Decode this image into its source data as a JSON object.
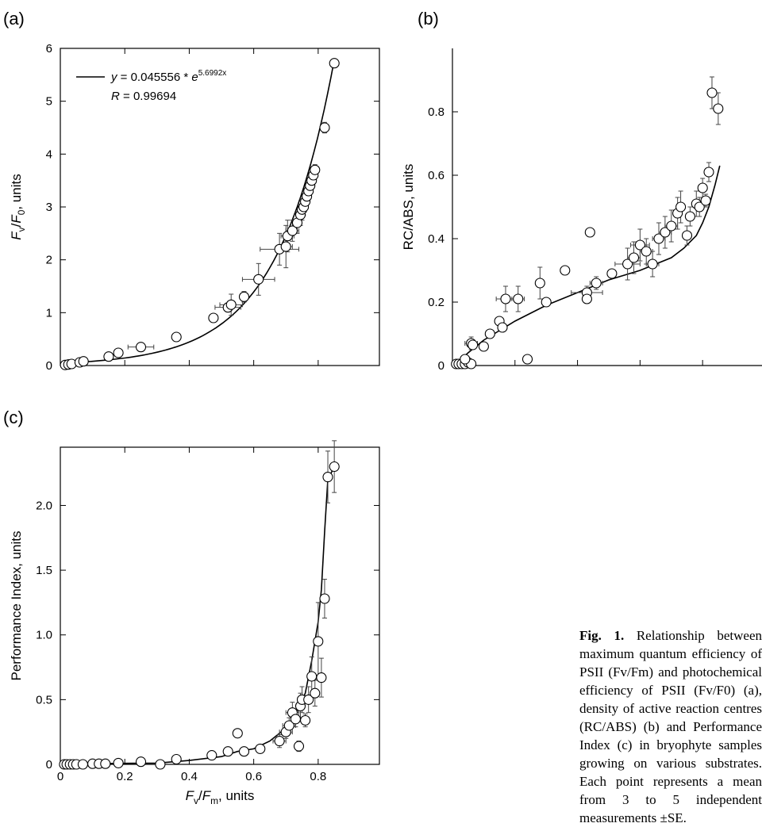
{
  "chart_data": [
    {
      "type": "scatter",
      "panel_label": "(a)",
      "ylabel": "F_v/F_0, units",
      "xlim": [
        0,
        0.99
      ],
      "ylim": [
        0,
        6
      ],
      "yticks": [
        "0",
        "1",
        "2",
        "3",
        "4",
        "5",
        "6"
      ],
      "equation_prefix": "y = 0.045556 * ",
      "equation_base": "e",
      "equation_exponent": "5.6992x",
      "r_label": "R",
      "r_value": " = 0.99694",
      "fit": {
        "kind": "exp",
        "a": 0.045556,
        "b": 5.6992,
        "x_range": [
          0.012,
          0.85
        ]
      },
      "points": [
        [
          0.015,
          0.01,
          0,
          0
        ],
        [
          0.025,
          0.02,
          0,
          0
        ],
        [
          0.035,
          0.03,
          0,
          0
        ],
        [
          0.06,
          0.06,
          0,
          0
        ],
        [
          0.072,
          0.08,
          0,
          0
        ],
        [
          0.15,
          0.17,
          0,
          0
        ],
        [
          0.18,
          0.24,
          0,
          0
        ],
        [
          0.25,
          0.35,
          0.04,
          0.06
        ],
        [
          0.36,
          0.54,
          0,
          0.04
        ],
        [
          0.475,
          0.9,
          0,
          0
        ],
        [
          0.52,
          1.1,
          0.04,
          0.05
        ],
        [
          0.53,
          1.15,
          0.035,
          0.2
        ],
        [
          0.57,
          1.3,
          0.01,
          0.1
        ],
        [
          0.615,
          1.63,
          0.05,
          0.3
        ],
        [
          0.68,
          2.2,
          0.06,
          0.3
        ],
        [
          0.7,
          2.25,
          0.02,
          0.4
        ],
        [
          0.705,
          2.45,
          0.02,
          0.3
        ],
        [
          0.72,
          2.55,
          0.02,
          0.2
        ],
        [
          0.735,
          2.7,
          0.01,
          0.2
        ],
        [
          0.745,
          2.85,
          0.01,
          0.2
        ],
        [
          0.75,
          2.95,
          0.01,
          0.2
        ],
        [
          0.755,
          3.0,
          0.01,
          0.15
        ],
        [
          0.76,
          3.1,
          0.01,
          0.15
        ],
        [
          0.765,
          3.2,
          0.01,
          0.1
        ],
        [
          0.77,
          3.3,
          0.01,
          0.1
        ],
        [
          0.775,
          3.4,
          0.01,
          0.1
        ],
        [
          0.78,
          3.5,
          0.01,
          0.1
        ],
        [
          0.785,
          3.6,
          0.01,
          0.1
        ],
        [
          0.79,
          3.7,
          0.01,
          0.1
        ],
        [
          0.82,
          4.5,
          0.01,
          0.1
        ],
        [
          0.85,
          5.72,
          0,
          0
        ]
      ]
    },
    {
      "type": "scatter",
      "panel_label": "(b)",
      "ylabel": "RC/ABS, units",
      "xlim": [
        0,
        0.99
      ],
      "ylim": [
        0,
        1.0
      ],
      "yticks": [
        "0",
        "0.2",
        "0.4",
        "0.6",
        "0.8"
      ],
      "fit": {
        "kind": "curve",
        "points": [
          [
            0.012,
            0.005
          ],
          [
            0.05,
            0.04
          ],
          [
            0.1,
            0.08
          ],
          [
            0.15,
            0.11
          ],
          [
            0.2,
            0.14
          ],
          [
            0.3,
            0.19
          ],
          [
            0.4,
            0.23
          ],
          [
            0.5,
            0.27
          ],
          [
            0.6,
            0.3
          ],
          [
            0.7,
            0.34
          ],
          [
            0.74,
            0.37
          ],
          [
            0.78,
            0.41
          ],
          [
            0.8,
            0.45
          ],
          [
            0.82,
            0.5
          ],
          [
            0.84,
            0.57
          ],
          [
            0.855,
            0.63
          ]
        ]
      },
      "points": [
        [
          0.012,
          0.005,
          0,
          0
        ],
        [
          0.02,
          0.005,
          0,
          0
        ],
        [
          0.03,
          0.005,
          0,
          0
        ],
        [
          0.04,
          0.005,
          0,
          0
        ],
        [
          0.05,
          0.01,
          0,
          0
        ],
        [
          0.06,
          0.005,
          0,
          0
        ],
        [
          0.04,
          0.02,
          0,
          0
        ],
        [
          0.06,
          0.07,
          0.02,
          0.02
        ],
        [
          0.065,
          0.065,
          0,
          0
        ],
        [
          0.1,
          0.06,
          0,
          0
        ],
        [
          0.12,
          0.1,
          0,
          0
        ],
        [
          0.15,
          0.14,
          0.01,
          0.01
        ],
        [
          0.16,
          0.12,
          0,
          0
        ],
        [
          0.17,
          0.21,
          0.03,
          0.04
        ],
        [
          0.21,
          0.21,
          0.02,
          0.04
        ],
        [
          0.24,
          0.02,
          0,
          0
        ],
        [
          0.28,
          0.26,
          0.01,
          0.05
        ],
        [
          0.3,
          0.2,
          0,
          0
        ],
        [
          0.36,
          0.3,
          0,
          0
        ],
        [
          0.43,
          0.23,
          0.05,
          0.02
        ],
        [
          0.43,
          0.21,
          0.01,
          0.01
        ],
        [
          0.44,
          0.42,
          0,
          0
        ],
        [
          0.46,
          0.26,
          0.02,
          0.02
        ],
        [
          0.51,
          0.29,
          0,
          0
        ],
        [
          0.56,
          0.32,
          0.04,
          0.05
        ],
        [
          0.58,
          0.34,
          0.02,
          0.05
        ],
        [
          0.6,
          0.38,
          0.03,
          0.05
        ],
        [
          0.62,
          0.36,
          0.02,
          0.04
        ],
        [
          0.64,
          0.32,
          0.02,
          0.04
        ],
        [
          0.66,
          0.4,
          0.02,
          0.05
        ],
        [
          0.68,
          0.42,
          0.02,
          0.05
        ],
        [
          0.7,
          0.44,
          0.02,
          0.05
        ],
        [
          0.72,
          0.48,
          0.01,
          0.05
        ],
        [
          0.73,
          0.5,
          0.01,
          0.05
        ],
        [
          0.75,
          0.41,
          0.01,
          0.03
        ],
        [
          0.76,
          0.47,
          0.01,
          0.03
        ],
        [
          0.78,
          0.51,
          0.01,
          0.04
        ],
        [
          0.79,
          0.5,
          0.01,
          0.03
        ],
        [
          0.8,
          0.56,
          0.01,
          0.03
        ],
        [
          0.81,
          0.52,
          0.01,
          0.02
        ],
        [
          0.82,
          0.61,
          0.01,
          0.03
        ],
        [
          0.83,
          0.86,
          0.01,
          0.05
        ],
        [
          0.85,
          0.81,
          0.01,
          0.05
        ]
      ]
    },
    {
      "type": "scatter",
      "panel_label": "(c)",
      "ylabel": "Performance Index, units",
      "xlabel": "F_v/F_m, units",
      "xlim": [
        0,
        0.99
      ],
      "ylim": [
        0,
        2.45
      ],
      "yticks": [
        "0",
        "0.5",
        "1.0",
        "1.5",
        "2.0"
      ],
      "xticks": [
        "0",
        "0.2",
        "0.4",
        "0.6",
        "0.8"
      ],
      "fit": {
        "kind": "curve",
        "points": [
          [
            0.012,
            0.0
          ],
          [
            0.1,
            0.005
          ],
          [
            0.2,
            0.008
          ],
          [
            0.3,
            0.01
          ],
          [
            0.4,
            0.03
          ],
          [
            0.5,
            0.06
          ],
          [
            0.55,
            0.1
          ],
          [
            0.6,
            0.12
          ],
          [
            0.65,
            0.18
          ],
          [
            0.7,
            0.28
          ],
          [
            0.73,
            0.38
          ],
          [
            0.76,
            0.55
          ],
          [
            0.78,
            0.8
          ],
          [
            0.8,
            1.1
          ],
          [
            0.81,
            1.35
          ],
          [
            0.82,
            1.8
          ],
          [
            0.83,
            2.2
          ],
          [
            0.85,
            2.3
          ]
        ]
      },
      "points": [
        [
          0.012,
          0.0,
          0,
          0
        ],
        [
          0.02,
          0.0,
          0,
          0
        ],
        [
          0.03,
          0.0,
          0,
          0
        ],
        [
          0.04,
          0.0,
          0,
          0
        ],
        [
          0.05,
          0.0,
          0,
          0
        ],
        [
          0.07,
          0.0,
          0,
          0
        ],
        [
          0.1,
          0.005,
          0,
          0
        ],
        [
          0.12,
          0.005,
          0,
          0
        ],
        [
          0.14,
          0.005,
          0,
          0
        ],
        [
          0.18,
          0.01,
          0,
          0
        ],
        [
          0.25,
          0.02,
          0,
          0
        ],
        [
          0.31,
          0.0,
          0,
          0
        ],
        [
          0.36,
          0.04,
          0,
          0
        ],
        [
          0.47,
          0.07,
          0,
          0
        ],
        [
          0.52,
          0.1,
          0,
          0
        ],
        [
          0.55,
          0.24,
          0,
          0
        ],
        [
          0.57,
          0.1,
          0,
          0
        ],
        [
          0.62,
          0.12,
          0,
          0
        ],
        [
          0.68,
          0.18,
          0.02,
          0.05
        ],
        [
          0.7,
          0.25,
          0.02,
          0.05
        ],
        [
          0.71,
          0.3,
          0.02,
          0.06
        ],
        [
          0.72,
          0.4,
          0.02,
          0.08
        ],
        [
          0.73,
          0.35,
          0.01,
          0.06
        ],
        [
          0.74,
          0.14,
          0.01,
          0.04
        ],
        [
          0.745,
          0.45,
          0.01,
          0.1
        ],
        [
          0.75,
          0.5,
          0.01,
          0.1
        ],
        [
          0.76,
          0.34,
          0.01,
          0.05
        ],
        [
          0.77,
          0.5,
          0.01,
          0.1
        ],
        [
          0.78,
          0.68,
          0.01,
          0.15
        ],
        [
          0.79,
          0.55,
          0.01,
          0.1
        ],
        [
          0.8,
          0.95,
          0.01,
          0.3
        ],
        [
          0.81,
          0.67,
          0.01,
          0.15
        ],
        [
          0.82,
          1.28,
          0.01,
          0.15
        ],
        [
          0.83,
          2.22,
          0.01,
          0.2
        ],
        [
          0.85,
          2.3,
          0.01,
          0.2
        ]
      ]
    }
  ],
  "caption": {
    "title": "Fig. 1.",
    "text": "Relationship between maximum quantum efficiency of PSII (Fv/Fm) and photochemical efficiency of PSII (Fv/F0) (a), density of active reaction centres (RC/ABS) (b) and Performance Index (c) in bryophyte samples growing on various substrates. Each point represents a mean from 3 to 5 independent measurements ±SE."
  }
}
